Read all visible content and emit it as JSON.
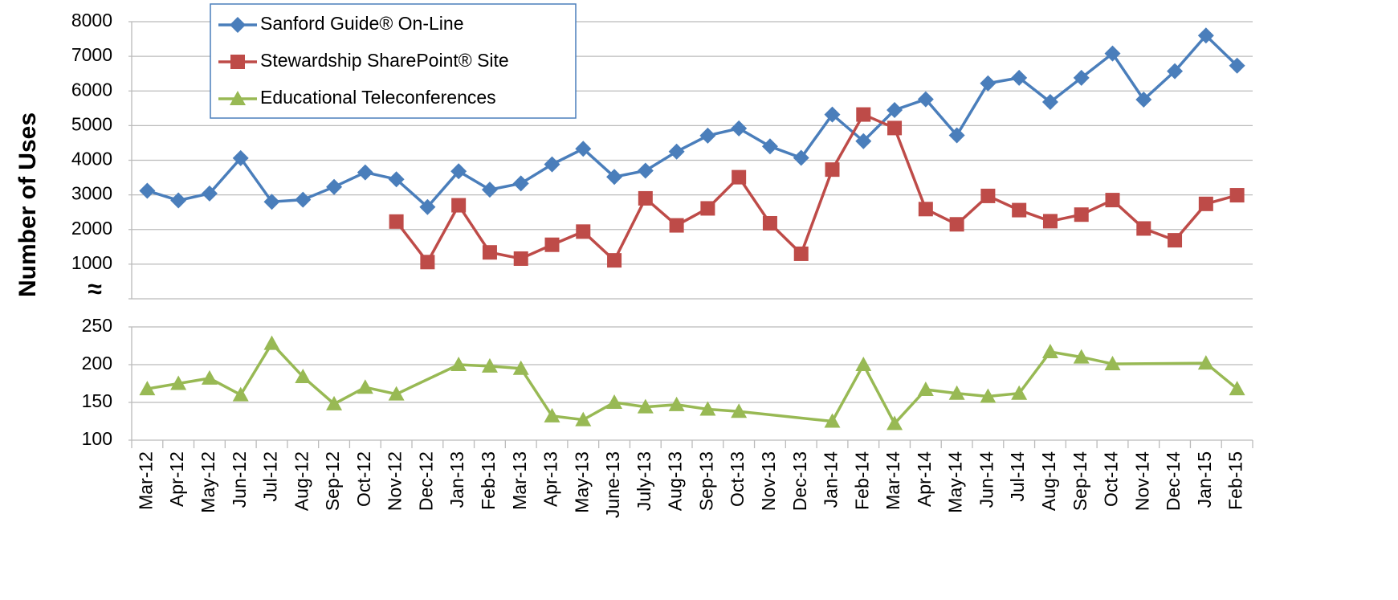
{
  "chart_data": {
    "type": "line",
    "y_label": "Number of Uses",
    "axis_break": "≈",
    "categories": [
      "Mar-12",
      "Apr-12",
      "May-12",
      "Jun-12",
      "Jul-12",
      "Aug-12",
      "Sep-12",
      "Oct-12",
      "Nov-12",
      "Dec-12",
      "Jan-13",
      "Feb-13",
      "Mar-13",
      "Apr-13",
      "May-13",
      "June-13",
      "July-13",
      "Aug-13",
      "Sep-13",
      "Oct-13",
      "Nov-13",
      "Dec-13",
      "Jan-14",
      "Feb-14",
      "Mar-14",
      "Apr-14",
      "May-14",
      "Jun-14",
      "Jul-14",
      "Aug-14",
      "Sep-14",
      "Oct-14",
      "Nov-14",
      "Dec-14",
      "Jan-15",
      "Feb-15"
    ],
    "series": [
      {
        "name": "Sanford Guide® On-Line",
        "color": "#4a7ebb",
        "marker": "diamond",
        "values": [
          3120,
          2840,
          3040,
          4060,
          2800,
          2860,
          3230,
          3650,
          3450,
          2650,
          3680,
          3150,
          3330,
          3880,
          4330,
          3520,
          3700,
          4250,
          4710,
          4920,
          4400,
          4070,
          5320,
          4550,
          5450,
          5760,
          4720,
          6220,
          6380,
          5680,
          6380,
          7080,
          5750,
          6570,
          7600,
          6730
        ]
      },
      {
        "name": "Stewardship SharePoint® Site",
        "color": "#be4b48",
        "marker": "square",
        "values": [
          null,
          null,
          null,
          null,
          null,
          null,
          null,
          null,
          2230,
          1060,
          2700,
          1340,
          1160,
          1560,
          1940,
          1110,
          2900,
          2120,
          2610,
          3510,
          2180,
          1300,
          3730,
          5320,
          4930,
          2590,
          2150,
          2970,
          2560,
          2240,
          2430,
          2850,
          2030,
          1690,
          2740,
          2990
        ]
      },
      {
        "name": "Educational Teleconferences",
        "color": "#98b954",
        "marker": "triangle",
        "axis": "y2",
        "values": [
          168,
          175,
          182,
          160,
          228,
          184,
          148,
          170,
          161,
          null,
          200,
          198,
          195,
          132,
          127,
          150,
          144,
          147,
          141,
          138,
          null,
          null,
          125,
          200,
          122,
          167,
          162,
          158,
          162,
          217,
          210,
          201,
          null,
          null,
          202,
          168
        ]
      }
    ],
    "span_gaps": true,
    "ylim": [
      0,
      8000
    ],
    "yticks": [
      1000,
      2000,
      3000,
      4000,
      5000,
      6000,
      7000,
      8000
    ],
    "y2lim": [
      100,
      250
    ],
    "y2ticks": [
      100,
      150,
      200,
      250
    ],
    "grid": true,
    "legend": "upper left"
  }
}
